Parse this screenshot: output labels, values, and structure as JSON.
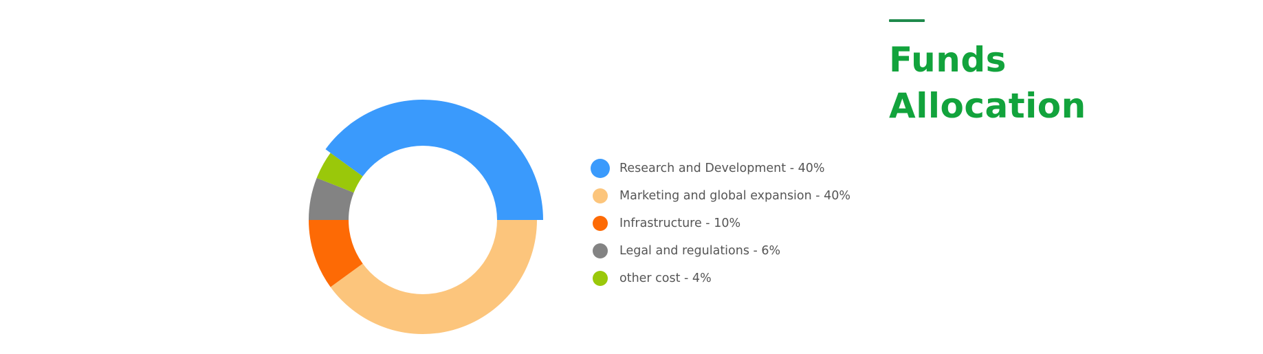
{
  "title": {
    "line1": "Funds",
    "line2": "Allocation"
  },
  "colors": {
    "title": "#12a33c",
    "title_rule": "#1f8a4c"
  },
  "chart_data": {
    "type": "pie",
    "donut": true,
    "title": "Funds Allocation",
    "legend_position": "right",
    "slices": [
      {
        "name": "Research and Development",
        "value": 40,
        "color": "#3a9afc",
        "label": "Research and Development - 40%"
      },
      {
        "name": "Marketing and global expansion",
        "value": 40,
        "color": "#fcc57c",
        "label": "Marketing and global expansion - 40%"
      },
      {
        "name": "Infrastructure",
        "value": 10,
        "color": "#fd6a05",
        "label": "Infrastructure - 10%"
      },
      {
        "name": "Legal and regulations",
        "value": 6,
        "color": "#838383",
        "label": "Legal and regulations - 6%"
      },
      {
        "name": "other cost",
        "value": 4,
        "color": "#9ac80a",
        "label": "other cost - 4%"
      }
    ]
  }
}
